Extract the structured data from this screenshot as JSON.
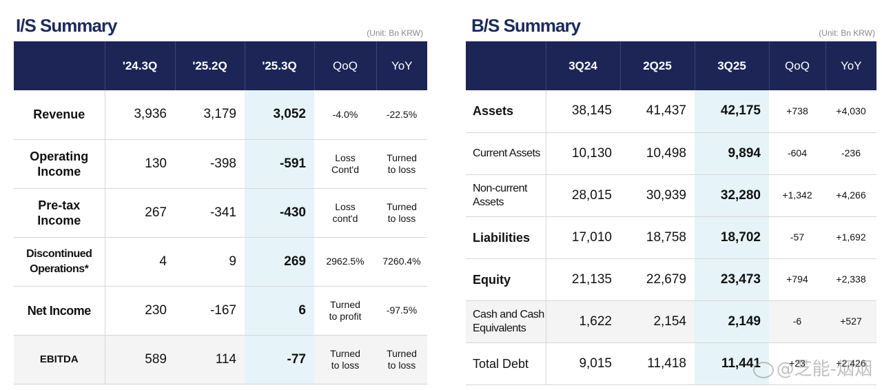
{
  "is": {
    "title": "I/S Summary",
    "unit": "(Unit: Bn KRW)",
    "columns": [
      "'24.3Q",
      "'25.2Q",
      "'25.3Q",
      "QoQ",
      "YoY"
    ],
    "rows": [
      {
        "label1": "Revenue",
        "label2": "",
        "c1": "3,936",
        "c2": "3,179",
        "c3": "3,052",
        "qoq1": "-4.0%",
        "qoq2": "",
        "yoy1": "-22.5%",
        "yoy2": ""
      },
      {
        "label1": "Operating",
        "label2": "Income",
        "c1": "130",
        "c2": "-398",
        "c3": "-591",
        "qoq1": "Loss",
        "qoq2": "Cont'd",
        "yoy1": "Turned",
        "yoy2": "to loss"
      },
      {
        "label1": "Pre-tax",
        "label2": "Income",
        "c1": "267",
        "c2": "-341",
        "c3": "-430",
        "qoq1": "Loss",
        "qoq2": "cont'd",
        "yoy1": "Turned",
        "yoy2": "to loss"
      },
      {
        "label1": "Discontinued",
        "label2": "Operations*",
        "c1": "4",
        "c2": "9",
        "c3": "269",
        "qoq1": "2962.5%",
        "qoq2": "",
        "yoy1": "7260.4%",
        "yoy2": ""
      },
      {
        "label1": "Net Income",
        "label2": "",
        "c1": "230",
        "c2": "-167",
        "c3": "6",
        "qoq1": "Turned",
        "qoq2": "to profit",
        "yoy1": "-97.5%",
        "yoy2": ""
      },
      {
        "label1": "EBITDA",
        "label2": "",
        "c1": "589",
        "c2": "114",
        "c3": "-77",
        "qoq1": "Turned",
        "qoq2": "to loss",
        "yoy1": "Turned",
        "yoy2": "to loss"
      }
    ]
  },
  "bs": {
    "title": "B/S Summary",
    "unit": "(Unit: Bn KRW)",
    "columns": [
      "3Q24",
      "2Q25",
      "3Q25",
      "QoQ",
      "YoY"
    ],
    "rows": [
      {
        "label1": "Assets",
        "label2": "",
        "c1": "38,145",
        "c2": "41,437",
        "c3": "42,175",
        "qoq": "+738",
        "yoy": "+4,030"
      },
      {
        "label1": "Current Assets",
        "label2": "",
        "c1": "10,130",
        "c2": "10,498",
        "c3": "9,894",
        "qoq": "-604",
        "yoy": "-236"
      },
      {
        "label1": "Non-current",
        "label2": "Assets",
        "c1": "28,015",
        "c2": "30,939",
        "c3": "32,280",
        "qoq": "+1,342",
        "yoy": "+4,266"
      },
      {
        "label1": "Liabilities",
        "label2": "",
        "c1": "17,010",
        "c2": "18,758",
        "c3": "18,702",
        "qoq": "-57",
        "yoy": "+1,692"
      },
      {
        "label1": "Equity",
        "label2": "",
        "c1": "21,135",
        "c2": "22,679",
        "c3": "23,473",
        "qoq": "+794",
        "yoy": "+2,338"
      },
      {
        "label1": "Cash and Cash",
        "label2": "Equivalents",
        "c1": "1,622",
        "c2": "2,154",
        "c3": "2,149",
        "qoq": "-6",
        "yoy": "+527"
      },
      {
        "label1": "Total Debt",
        "label2": "",
        "c1": "9,015",
        "c2": "11,418",
        "c3": "11,441",
        "qoq": "+23",
        "yoy": "+2,426"
      }
    ]
  },
  "watermark": "@芝能-烟烟"
}
